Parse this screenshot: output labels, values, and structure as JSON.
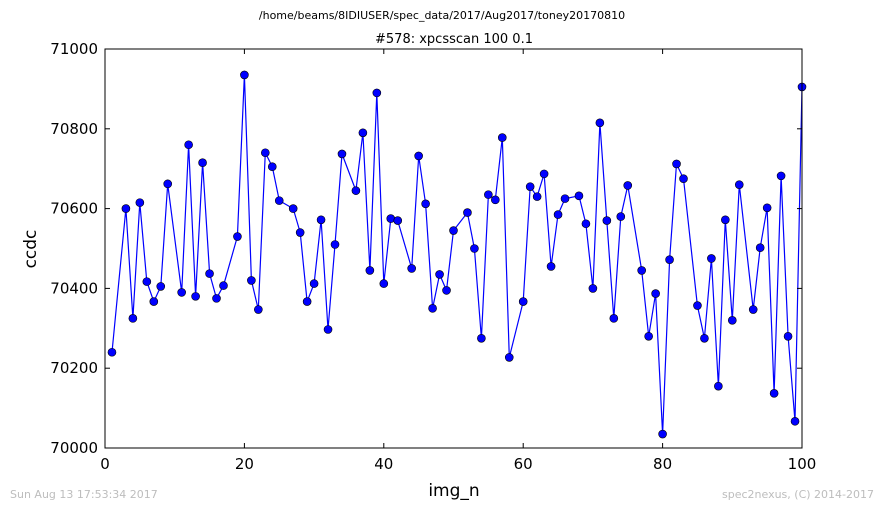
{
  "header": {
    "path": "/home/beams/8IDIUSER/spec_data/2017/Aug2017/toney20170810",
    "scan_title": "#578: xpcsscan 100 0.1"
  },
  "footer": {
    "timestamp": "Sun Aug 13 17:53:34 2017",
    "credit": "spec2nexus, (C) 2014-2017"
  },
  "chart_data": {
    "type": "line",
    "title": "#578: xpcsscan 100 0.1",
    "xlabel": "img_n",
    "ylabel": "ccdc",
    "xlim": [
      0,
      100
    ],
    "ylim": [
      70000,
      71000
    ],
    "xticks": [
      0,
      20,
      40,
      60,
      80,
      100
    ],
    "yticks": [
      70000,
      70200,
      70400,
      70600,
      70800,
      71000
    ],
    "xtick_labels": [
      "0",
      "20",
      "40",
      "60",
      "80",
      "100"
    ],
    "ytick_labels": [
      "70000",
      "70200",
      "70400",
      "70600",
      "70800",
      "71000"
    ],
    "grid": false,
    "line_color": "#0000ff",
    "marker_color": "#0000ff",
    "series": [
      {
        "x": [
          1,
          3,
          4,
          5,
          6,
          7,
          8,
          9,
          11,
          12,
          13,
          14,
          15,
          16,
          17,
          19,
          20,
          21,
          22,
          23,
          24,
          25,
          27,
          28,
          29,
          30,
          31,
          32,
          33,
          34,
          36,
          37,
          38,
          39,
          40,
          41,
          42,
          44,
          45,
          46,
          47,
          48,
          49,
          50,
          52,
          53,
          54,
          55,
          56,
          57,
          58,
          60,
          61,
          62,
          63,
          64,
          65,
          66,
          68,
          69,
          70,
          71,
          72,
          73,
          74,
          75,
          77,
          78,
          79,
          80,
          81,
          82,
          83,
          85,
          86,
          87,
          88,
          89,
          90,
          91,
          93,
          94,
          95,
          96,
          97,
          98,
          99,
          100
        ],
        "y": [
          70240,
          70600,
          70325,
          70615,
          70417,
          70367,
          70405,
          70662,
          70390,
          70760,
          70380,
          70715,
          70437,
          70375,
          70407,
          70530,
          70935,
          70420,
          70347,
          70740,
          70705,
          70620,
          70600,
          70540,
          70367,
          70412,
          70572,
          70297,
          70510,
          70737,
          70645,
          70790,
          70445,
          70890,
          70412,
          70575,
          70570,
          70450,
          70732,
          70612,
          70350,
          70435,
          70395,
          70545,
          70590,
          70500,
          70275,
          70635,
          70622,
          70778,
          70227,
          70367,
          70655,
          70630,
          70687,
          70455,
          70585,
          70625,
          70632,
          70562,
          70400,
          70815,
          70570,
          70325,
          70580,
          70658,
          70445,
          70280,
          70387,
          70035,
          70472,
          70712,
          70675,
          70357,
          70275,
          70475,
          70155,
          70572,
          70320,
          70660,
          70347,
          70502,
          70602,
          70137,
          70682,
          70280,
          70067,
          70905
        ]
      }
    ]
  }
}
